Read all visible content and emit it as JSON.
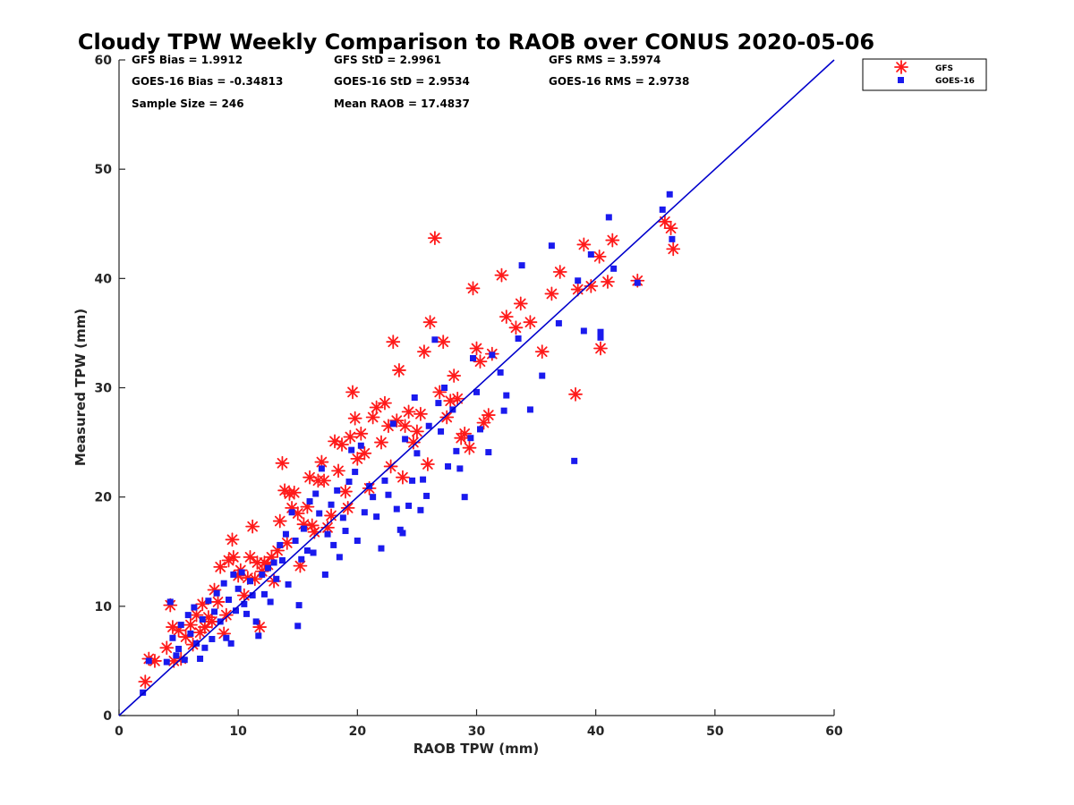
{
  "chart_data": {
    "type": "scatter",
    "title": "Cloudy TPW Weekly Comparison to RAOB over CONUS 2020-05-06",
    "xlabel": "RAOB TPW (mm)",
    "ylabel": "Measured TPW (mm)",
    "xlim": [
      0,
      60
    ],
    "ylim": [
      0,
      60
    ],
    "xticks": [
      "0",
      "10",
      "20",
      "30",
      "40",
      "50",
      "60"
    ],
    "yticks": [
      "0",
      "10",
      "20",
      "30",
      "40",
      "50",
      "60"
    ],
    "grid": false,
    "legend_position": "outside-top-right",
    "reference_line": {
      "x": [
        0,
        60
      ],
      "y": [
        0,
        60
      ],
      "color": "#0000cc"
    },
    "stats": [
      [
        "GFS Bias = 1.9912",
        "GFS StD = 2.9961",
        "GFS RMS = 3.5974"
      ],
      [
        "GOES-16 Bias = -0.34813",
        "GOES-16 StD = 2.9534",
        "GOES-16 RMS = 2.9738"
      ],
      [
        "Sample Size = 246",
        "Mean RAOB = 17.4837",
        ""
      ]
    ],
    "series": [
      {
        "name": "GFS",
        "marker": "asterisk",
        "color": "#ff1a1a",
        "points": [
          [
            2.2,
            3.1
          ],
          [
            2.5,
            5.2
          ],
          [
            3.0,
            5.0
          ],
          [
            4.0,
            6.2
          ],
          [
            4.3,
            10.1
          ],
          [
            4.5,
            8.1
          ],
          [
            4.6,
            5.0
          ],
          [
            5.0,
            7.8
          ],
          [
            5.2,
            5.2
          ],
          [
            5.6,
            7.2
          ],
          [
            6.0,
            8.3
          ],
          [
            6.2,
            6.5
          ],
          [
            6.5,
            9.2
          ],
          [
            6.8,
            7.6
          ],
          [
            7.0,
            10.2
          ],
          [
            7.2,
            8.1
          ],
          [
            7.5,
            9.0
          ],
          [
            7.8,
            8.6
          ],
          [
            8.0,
            11.5
          ],
          [
            8.3,
            10.4
          ],
          [
            8.5,
            13.6
          ],
          [
            8.8,
            7.5
          ],
          [
            9.0,
            9.2
          ],
          [
            9.2,
            14.2
          ],
          [
            9.5,
            16.1
          ],
          [
            9.6,
            14.5
          ],
          [
            10.0,
            12.8
          ],
          [
            10.2,
            13.3
          ],
          [
            10.5,
            11.0
          ],
          [
            10.8,
            12.6
          ],
          [
            11.0,
            14.5
          ],
          [
            11.2,
            17.3
          ],
          [
            11.4,
            12.5
          ],
          [
            11.6,
            14.0
          ],
          [
            11.8,
            8.1
          ],
          [
            12.0,
            13.2
          ],
          [
            12.2,
            14.0
          ],
          [
            12.5,
            13.8
          ],
          [
            12.8,
            14.5
          ],
          [
            13.0,
            12.3
          ],
          [
            13.3,
            15.1
          ],
          [
            13.5,
            17.8
          ],
          [
            13.7,
            23.1
          ],
          [
            13.9,
            20.6
          ],
          [
            14.1,
            15.8
          ],
          [
            14.3,
            20.3
          ],
          [
            14.5,
            19.0
          ],
          [
            14.7,
            20.4
          ],
          [
            15.0,
            18.5
          ],
          [
            15.2,
            13.7
          ],
          [
            15.5,
            17.5
          ],
          [
            15.8,
            19.1
          ],
          [
            16.0,
            21.8
          ],
          [
            16.2,
            17.4
          ],
          [
            16.4,
            16.8
          ],
          [
            16.7,
            21.5
          ],
          [
            17.0,
            23.2
          ],
          [
            17.2,
            21.5
          ],
          [
            17.5,
            17.2
          ],
          [
            17.8,
            18.3
          ],
          [
            18.1,
            25.1
          ],
          [
            18.4,
            22.4
          ],
          [
            18.7,
            24.8
          ],
          [
            19.0,
            20.5
          ],
          [
            19.2,
            19.0
          ],
          [
            19.4,
            25.5
          ],
          [
            19.6,
            29.6
          ],
          [
            19.8,
            27.2
          ],
          [
            20.0,
            23.5
          ],
          [
            20.3,
            25.8
          ],
          [
            20.6,
            24.0
          ],
          [
            21.0,
            20.8
          ],
          [
            21.3,
            27.3
          ],
          [
            21.6,
            28.2
          ],
          [
            22.0,
            25.0
          ],
          [
            22.3,
            28.6
          ],
          [
            22.6,
            26.5
          ],
          [
            22.8,
            22.8
          ],
          [
            23.0,
            34.2
          ],
          [
            23.3,
            27.0
          ],
          [
            23.5,
            31.6
          ],
          [
            23.8,
            21.8
          ],
          [
            24.0,
            26.5
          ],
          [
            24.3,
            27.8
          ],
          [
            24.7,
            25.0
          ],
          [
            25.0,
            26.0
          ],
          [
            25.3,
            27.6
          ],
          [
            25.6,
            33.3
          ],
          [
            25.9,
            23.0
          ],
          [
            26.1,
            36.0
          ],
          [
            26.5,
            43.7
          ],
          [
            26.9,
            29.6
          ],
          [
            27.2,
            34.2
          ],
          [
            27.5,
            27.3
          ],
          [
            27.8,
            28.8
          ],
          [
            28.1,
            31.1
          ],
          [
            28.4,
            29.0
          ],
          [
            28.7,
            25.4
          ],
          [
            29.0,
            25.8
          ],
          [
            29.4,
            24.5
          ],
          [
            29.7,
            39.1
          ],
          [
            30.0,
            33.6
          ],
          [
            30.3,
            32.4
          ],
          [
            30.6,
            26.8
          ],
          [
            31.0,
            27.5
          ],
          [
            31.3,
            33.1
          ],
          [
            32.1,
            40.3
          ],
          [
            32.5,
            36.5
          ],
          [
            33.3,
            35.5
          ],
          [
            33.7,
            37.7
          ],
          [
            34.5,
            36.0
          ],
          [
            35.5,
            33.3
          ],
          [
            36.3,
            38.6
          ],
          [
            37.0,
            40.6
          ],
          [
            38.3,
            29.4
          ],
          [
            38.5,
            39.0
          ],
          [
            39.0,
            43.1
          ],
          [
            39.6,
            39.3
          ],
          [
            40.3,
            42.0
          ],
          [
            40.4,
            33.6
          ],
          [
            41.0,
            39.7
          ],
          [
            41.4,
            43.5
          ],
          [
            43.5,
            39.8
          ],
          [
            45.8,
            45.2
          ],
          [
            46.3,
            44.6
          ],
          [
            46.5,
            42.7
          ]
        ]
      },
      {
        "name": "GOES-16",
        "marker": "square",
        "color": "#1a1aee",
        "points": [
          [
            2.0,
            2.1
          ],
          [
            2.5,
            5.0
          ],
          [
            4.0,
            4.9
          ],
          [
            4.3,
            10.4
          ],
          [
            4.5,
            7.1
          ],
          [
            4.8,
            5.5
          ],
          [
            5.0,
            6.1
          ],
          [
            5.2,
            8.3
          ],
          [
            5.5,
            5.1
          ],
          [
            5.8,
            9.2
          ],
          [
            6.0,
            7.5
          ],
          [
            6.3,
            9.9
          ],
          [
            6.5,
            6.6
          ],
          [
            6.8,
            5.2
          ],
          [
            7.0,
            8.8
          ],
          [
            7.2,
            6.2
          ],
          [
            7.5,
            10.5
          ],
          [
            7.8,
            7.0
          ],
          [
            8.0,
            9.5
          ],
          [
            8.2,
            11.2
          ],
          [
            8.5,
            8.6
          ],
          [
            8.8,
            12.1
          ],
          [
            9.0,
            7.1
          ],
          [
            9.2,
            10.6
          ],
          [
            9.4,
            6.6
          ],
          [
            9.6,
            12.9
          ],
          [
            9.8,
            9.6
          ],
          [
            10.0,
            11.6
          ],
          [
            10.3,
            13.1
          ],
          [
            10.5,
            10.2
          ],
          [
            10.7,
            9.3
          ],
          [
            11.0,
            12.3
          ],
          [
            11.2,
            11.0
          ],
          [
            11.5,
            8.6
          ],
          [
            11.7,
            7.3
          ],
          [
            12.0,
            12.9
          ],
          [
            12.2,
            11.1
          ],
          [
            12.5,
            13.5
          ],
          [
            12.7,
            10.4
          ],
          [
            13.0,
            14.0
          ],
          [
            13.2,
            12.5
          ],
          [
            13.5,
            15.6
          ],
          [
            13.7,
            14.2
          ],
          [
            14.0,
            16.6
          ],
          [
            14.2,
            12.0
          ],
          [
            14.5,
            18.6
          ],
          [
            14.8,
            16.0
          ],
          [
            15.0,
            8.2
          ],
          [
            15.1,
            10.1
          ],
          [
            15.3,
            14.3
          ],
          [
            15.5,
            17.1
          ],
          [
            15.8,
            15.1
          ],
          [
            16.0,
            19.6
          ],
          [
            16.3,
            14.9
          ],
          [
            16.5,
            20.3
          ],
          [
            16.8,
            18.5
          ],
          [
            17.0,
            22.6
          ],
          [
            17.3,
            12.9
          ],
          [
            17.5,
            16.6
          ],
          [
            17.8,
            19.3
          ],
          [
            18.0,
            15.6
          ],
          [
            18.3,
            20.6
          ],
          [
            18.5,
            14.5
          ],
          [
            18.8,
            18.1
          ],
          [
            19.0,
            16.9
          ],
          [
            19.3,
            21.4
          ],
          [
            19.5,
            24.3
          ],
          [
            19.8,
            22.3
          ],
          [
            20.0,
            16.0
          ],
          [
            20.3,
            24.7
          ],
          [
            20.6,
            18.6
          ],
          [
            21.0,
            21.0
          ],
          [
            21.3,
            20.0
          ],
          [
            21.6,
            18.2
          ],
          [
            22.0,
            15.3
          ],
          [
            22.3,
            21.5
          ],
          [
            22.6,
            20.2
          ],
          [
            23.0,
            26.7
          ],
          [
            23.3,
            18.9
          ],
          [
            23.6,
            17.0
          ],
          [
            23.8,
            16.7
          ],
          [
            24.0,
            25.3
          ],
          [
            24.3,
            19.2
          ],
          [
            24.6,
            21.5
          ],
          [
            24.8,
            29.1
          ],
          [
            25.0,
            24.0
          ],
          [
            25.3,
            18.8
          ],
          [
            25.5,
            21.6
          ],
          [
            25.8,
            20.1
          ],
          [
            26.0,
            26.5
          ],
          [
            26.5,
            34.4
          ],
          [
            26.8,
            28.6
          ],
          [
            27.0,
            26.0
          ],
          [
            27.3,
            30.0
          ],
          [
            27.6,
            22.8
          ],
          [
            28.0,
            28.0
          ],
          [
            28.3,
            24.2
          ],
          [
            28.6,
            22.6
          ],
          [
            29.0,
            20.0
          ],
          [
            29.5,
            25.4
          ],
          [
            29.7,
            32.7
          ],
          [
            30.0,
            29.6
          ],
          [
            30.3,
            26.2
          ],
          [
            31.0,
            24.1
          ],
          [
            31.3,
            33.0
          ],
          [
            32.0,
            31.4
          ],
          [
            32.3,
            27.9
          ],
          [
            32.5,
            29.3
          ],
          [
            33.5,
            34.5
          ],
          [
            33.8,
            41.2
          ],
          [
            34.5,
            28.0
          ],
          [
            35.5,
            31.1
          ],
          [
            36.3,
            43.0
          ],
          [
            36.9,
            35.9
          ],
          [
            38.2,
            23.3
          ],
          [
            38.5,
            39.8
          ],
          [
            39.0,
            35.2
          ],
          [
            39.6,
            42.2
          ],
          [
            40.4,
            34.6
          ],
          [
            40.4,
            35.1
          ],
          [
            41.1,
            45.6
          ],
          [
            41.5,
            40.9
          ],
          [
            43.5,
            39.6
          ],
          [
            45.6,
            46.3
          ],
          [
            46.2,
            47.7
          ],
          [
            46.4,
            43.6
          ]
        ]
      }
    ]
  }
}
